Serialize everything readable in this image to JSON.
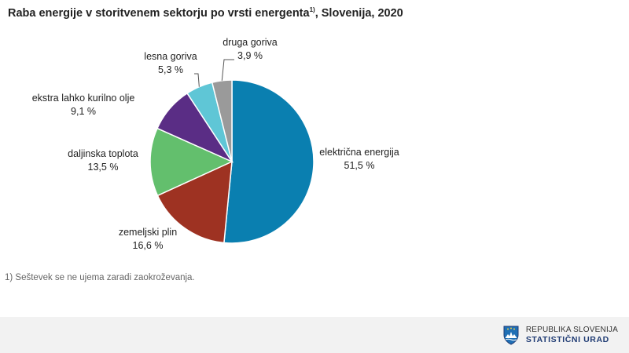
{
  "chart_data": {
    "type": "pie",
    "title": "Raba energije v storitvenem sektorju po vrsti energenta",
    "title_footnote_mark": "1)",
    "title_suffix": ", Slovenija, 2020",
    "slices": [
      {
        "label": "električna energija",
        "value": 51.5,
        "value_label": "51,5 %",
        "color": "#0a7fb0"
      },
      {
        "label": "zemeljski plin",
        "value": 16.6,
        "value_label": "16,6 %",
        "color": "#9e3222"
      },
      {
        "label": "daljinska toplota",
        "value": 13.5,
        "value_label": "13,5 %",
        "color": "#63bf6d"
      },
      {
        "label": "ekstra lahko kurilno olje",
        "value": 9.1,
        "value_label": "9,1 %",
        "color": "#5a2d85"
      },
      {
        "label": "lesna goriva",
        "value": 5.3,
        "value_label": "5,3 %",
        "color": "#5fc6d6"
      },
      {
        "label": "druga goriva",
        "value": 3.9,
        "value_label": "3,9 %",
        "color": "#9a9a9a"
      }
    ],
    "legend": "none",
    "labels": "outside"
  },
  "footnote": "1) Seštevek se ne ujema zaradi zaokroževanja.",
  "logo": {
    "line1": "REPUBLIKA SLOVENIJA",
    "line2": "STATISTIČNI URAD",
    "icon": "slovenia-coat-of-arms-icon",
    "color": "#1f3b73"
  }
}
